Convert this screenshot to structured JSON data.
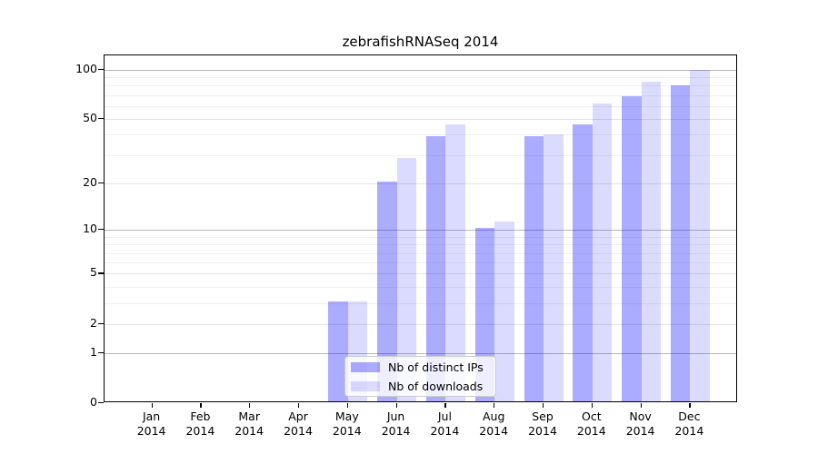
{
  "figure": {
    "background": "#ffffff",
    "frame_color": "#000000"
  },
  "chart_data": {
    "type": "bar",
    "title": "zebrafishRNASeq 2014",
    "categories": [
      "Jan",
      "Feb",
      "Mar",
      "Apr",
      "May",
      "Jun",
      "Jul",
      "Aug",
      "Sep",
      "Oct",
      "Nov",
      "Dec"
    ],
    "year_label": "2014",
    "series": [
      {
        "name": "Nb of distinct IPs",
        "color": "rgba(0,0,255,0.33)",
        "color_hex": "#aaaaff",
        "values": [
          0,
          0,
          0,
          0,
          3,
          20,
          38,
          10,
          38,
          45,
          67,
          78
        ]
      },
      {
        "name": "Nb of downloads",
        "color": "rgba(0,0,255,0.14)",
        "color_hex": "#dcdcff",
        "values": [
          0,
          0,
          0,
          0,
          3,
          28,
          45,
          11,
          39,
          61,
          82,
          97
        ]
      }
    ],
    "yscale": "log1p",
    "ymax": 122,
    "yticks": [
      0,
      1,
      2,
      5,
      10,
      20,
      50,
      100
    ],
    "decade_lines": [
      1,
      10,
      100
    ],
    "minor_gridlines": [
      3,
      4,
      6,
      7,
      8,
      9,
      30,
      40,
      60,
      70,
      80,
      90
    ],
    "grid": "horizontal-only",
    "legend_position": "lower center",
    "gridline_colors": {
      "decade": "#b8b8b8",
      "major": "#e3e3e3",
      "minor": "#efefef"
    }
  }
}
